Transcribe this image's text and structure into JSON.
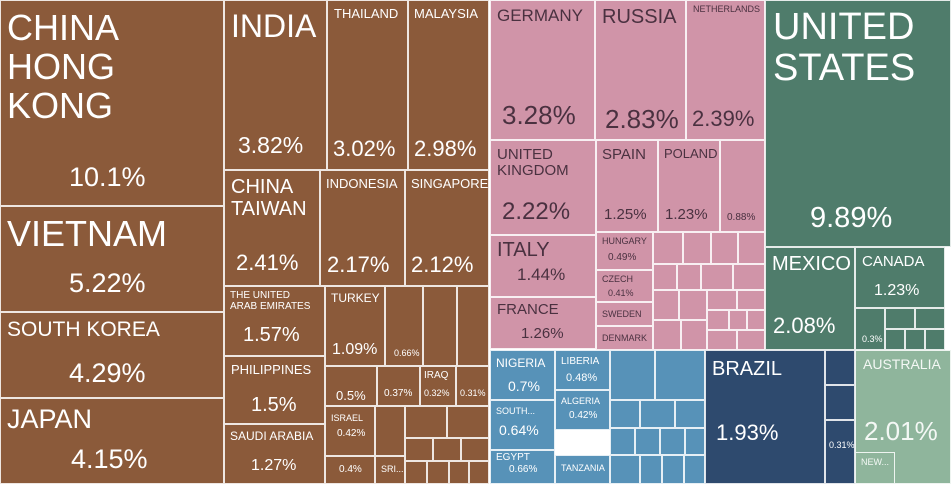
{
  "chart_data": {
    "type": "treemap",
    "unit": "%",
    "colors": {
      "asia": "#8b5a3a",
      "europe": "#d094a8",
      "north_america": "#4f7c6b",
      "africa": "#5792b8",
      "south_america": "#2e4a6e",
      "oceania": "#8fb59c"
    },
    "tiles": [
      {
        "name": "CHINA HONG KONG",
        "label": "CHINA\nHONG\nKONG",
        "value": 10.1,
        "value_label": "10.1%",
        "group": "asia"
      },
      {
        "name": "VIETNAM",
        "label": "VIETNAM",
        "value": 5.22,
        "value_label": "5.22%",
        "group": "asia"
      },
      {
        "name": "SOUTH KOREA",
        "label": "SOUTH KOREA",
        "value": 4.29,
        "value_label": "4.29%",
        "group": "asia"
      },
      {
        "name": "JAPAN",
        "label": "JAPAN",
        "value": 4.15,
        "value_label": "4.15%",
        "group": "asia"
      },
      {
        "name": "INDIA",
        "label": "INDIA",
        "value": 3.82,
        "value_label": "3.82%",
        "group": "asia"
      },
      {
        "name": "THAILAND",
        "label": "THAILAND",
        "value": 3.02,
        "value_label": "3.02%",
        "group": "asia"
      },
      {
        "name": "MALAYSIA",
        "label": "MALAYSIA",
        "value": 2.98,
        "value_label": "2.98%",
        "group": "asia"
      },
      {
        "name": "CHINA TAIWAN",
        "label": "CHINA\nTAIWAN",
        "value": 2.41,
        "value_label": "2.41%",
        "group": "asia"
      },
      {
        "name": "INDONESIA",
        "label": "INDONESIA",
        "value": 2.17,
        "value_label": "2.17%",
        "group": "asia"
      },
      {
        "name": "SINGAPORE",
        "label": "SINGAPORE",
        "value": 2.12,
        "value_label": "2.12%",
        "group": "asia"
      },
      {
        "name": "THE UNITED ARAB EMIRATES",
        "label": "THE UNITED\nARAB EMIRATES",
        "value": 1.57,
        "value_label": "1.57%",
        "group": "asia"
      },
      {
        "name": "TURKEY",
        "label": "TURKEY",
        "value": 1.09,
        "value_label": "1.09%",
        "group": "asia"
      },
      {
        "name": "",
        "label": "",
        "value": 0.66,
        "value_label": "0.66%",
        "group": "asia"
      },
      {
        "name": "PHILIPPINES",
        "label": "PHILIPPINES",
        "value": 1.5,
        "value_label": "1.5%",
        "group": "asia"
      },
      {
        "name": "",
        "label": "",
        "value": 0.5,
        "value_label": "0.5%",
        "group": "asia"
      },
      {
        "name": "",
        "label": "",
        "value": 0.37,
        "value_label": "0.37%",
        "group": "asia"
      },
      {
        "name": "IRAQ",
        "label": "IRAQ",
        "value": 0.32,
        "value_label": "0.32%",
        "group": "asia"
      },
      {
        "name": "",
        "label": "",
        "value": 0.31,
        "value_label": "0.31%",
        "group": "asia"
      },
      {
        "name": "SAUDI ARABIA",
        "label": "SAUDI ARABIA",
        "value": 1.27,
        "value_label": "1.27%",
        "group": "asia"
      },
      {
        "name": "ISRAEL",
        "label": "ISRAEL",
        "value": 0.42,
        "value_label": "0.42%",
        "group": "asia"
      },
      {
        "name": "",
        "label": "",
        "value": 0.4,
        "value_label": "0.4%",
        "group": "asia"
      },
      {
        "name": "SRI...",
        "label": "SRI...",
        "value": null,
        "value_label": "",
        "group": "asia"
      },
      {
        "name": "GERMANY",
        "label": "GERMANY",
        "value": 3.28,
        "value_label": "3.28%",
        "group": "europe"
      },
      {
        "name": "RUSSIA",
        "label": "RUSSIA",
        "value": 2.83,
        "value_label": "2.83%",
        "group": "europe"
      },
      {
        "name": "NETHERLANDS",
        "label": "NETHERLANDS",
        "value": 2.39,
        "value_label": "2.39%",
        "group": "europe"
      },
      {
        "name": "UNITED KINGDOM",
        "label": "UNITED\nKINGDOM",
        "value": 2.22,
        "value_label": "2.22%",
        "group": "europe"
      },
      {
        "name": "SPAIN",
        "label": "SPAIN",
        "value": 1.25,
        "value_label": "1.25%",
        "group": "europe"
      },
      {
        "name": "POLAND",
        "label": "POLAND",
        "value": 1.23,
        "value_label": "1.23%",
        "group": "europe"
      },
      {
        "name": "",
        "label": "",
        "value": 0.88,
        "value_label": "0.88%",
        "group": "europe"
      },
      {
        "name": "ITALY",
        "label": "ITALY",
        "value": 1.44,
        "value_label": "1.44%",
        "group": "europe"
      },
      {
        "name": "HUNGARY",
        "label": "HUNGARY",
        "value": 0.49,
        "value_label": "0.49%",
        "group": "europe"
      },
      {
        "name": "CZECH",
        "label": "CZECH",
        "value": 0.41,
        "value_label": "0.41%",
        "group": "europe"
      },
      {
        "name": "FRANCE",
        "label": "FRANCE",
        "value": 1.26,
        "value_label": "1.26%",
        "group": "europe"
      },
      {
        "name": "SWEDEN",
        "label": "SWEDEN",
        "value": null,
        "value_label": "",
        "group": "europe"
      },
      {
        "name": "DENMARK",
        "label": "DENMARK",
        "value": null,
        "value_label": "",
        "group": "europe"
      },
      {
        "name": "UNITED STATES",
        "label": "UNITED\nSTATES",
        "value": 9.89,
        "value_label": "9.89%",
        "group": "north_america"
      },
      {
        "name": "MEXICO",
        "label": "MEXICO",
        "value": 2.08,
        "value_label": "2.08%",
        "group": "north_america"
      },
      {
        "name": "CANADA",
        "label": "CANADA",
        "value": 1.23,
        "value_label": "1.23%",
        "group": "north_america"
      },
      {
        "name": "",
        "label": "",
        "value": 0.3,
        "value_label": "0.3%",
        "group": "north_america"
      },
      {
        "name": "NIGERIA",
        "label": "NIGERIA",
        "value": 0.7,
        "value_label": "0.7%",
        "group": "africa"
      },
      {
        "name": "LIBERIA",
        "label": "LIBERIA",
        "value": 0.48,
        "value_label": "0.48%",
        "group": "africa"
      },
      {
        "name": "ALGERIA",
        "label": "ALGERIA",
        "value": 0.42,
        "value_label": "0.42%",
        "group": "africa"
      },
      {
        "name": "SOUTH...",
        "label": "SOUTH...",
        "value": 0.64,
        "value_label": "0.64%",
        "group": "africa"
      },
      {
        "name": "EGYPT",
        "label": "EGYPT",
        "value": 0.66,
        "value_label": "0.66%",
        "group": "africa"
      },
      {
        "name": "TANZANIA",
        "label": "TANZANIA",
        "value": null,
        "value_label": "",
        "group": "africa"
      },
      {
        "name": "BRAZIL",
        "label": "BRAZIL",
        "value": 1.93,
        "value_label": "1.93%",
        "group": "south_america"
      },
      {
        "name": "",
        "label": "",
        "value": 0.31,
        "value_label": "0.31%",
        "group": "south_america"
      },
      {
        "name": "AUSTRALIA",
        "label": "AUSTRALIA",
        "value": 2.01,
        "value_label": "2.01%",
        "group": "oceania"
      },
      {
        "name": "NEW...",
        "label": "NEW...",
        "value": null,
        "value_label": "",
        "group": "oceania"
      }
    ]
  }
}
